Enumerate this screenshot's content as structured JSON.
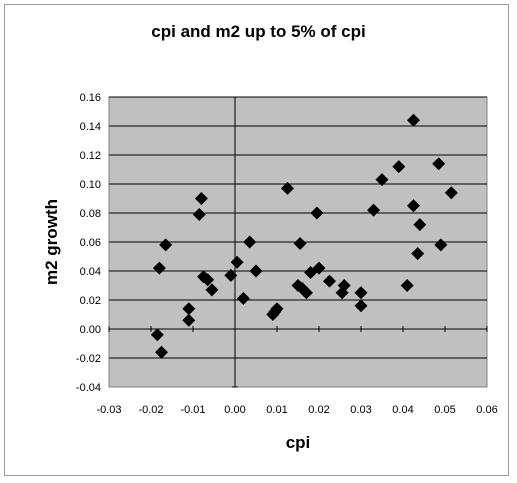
{
  "chart_data": {
    "type": "scatter",
    "title": "cpi and m2 up to 5% of cpi",
    "xlabel": "cpi",
    "ylabel": "m2 growth",
    "xlim": [
      -0.03,
      0.06
    ],
    "ylim": [
      -0.04,
      0.16
    ],
    "xticks": [
      -0.03,
      -0.02,
      -0.01,
      0.0,
      0.01,
      0.02,
      0.03,
      0.04,
      0.05,
      0.06
    ],
    "yticks": [
      -0.04,
      -0.02,
      0.0,
      0.02,
      0.04,
      0.06,
      0.08,
      0.1,
      0.12,
      0.14,
      0.16
    ],
    "xtick_labels": [
      "-0.03",
      "-0.02",
      "-0.01",
      "0.00",
      "0.01",
      "0.02",
      "0.03",
      "0.04",
      "0.05",
      "0.06"
    ],
    "ytick_labels": [
      "-0.04",
      "-0.02",
      "0.00",
      "0.02",
      "0.04",
      "0.06",
      "0.08",
      "0.10",
      "0.12",
      "0.14",
      "0.16"
    ],
    "grid": "horizontal",
    "legend": "none",
    "colors": {
      "plot_background": "#c0c0c0",
      "marker": "#000000",
      "gridline": "#000000"
    },
    "marker": "diamond",
    "points": [
      {
        "x": -0.0185,
        "y": -0.004
      },
      {
        "x": -0.0175,
        "y": -0.016
      },
      {
        "x": -0.018,
        "y": 0.042
      },
      {
        "x": -0.0165,
        "y": 0.058
      },
      {
        "x": -0.011,
        "y": 0.014
      },
      {
        "x": -0.011,
        "y": 0.006
      },
      {
        "x": -0.0085,
        "y": 0.079
      },
      {
        "x": -0.008,
        "y": 0.09
      },
      {
        "x": -0.0075,
        "y": 0.036
      },
      {
        "x": -0.0065,
        "y": 0.034
      },
      {
        "x": -0.0055,
        "y": 0.027
      },
      {
        "x": -0.001,
        "y": 0.037
      },
      {
        "x": 0.0005,
        "y": 0.046
      },
      {
        "x": 0.002,
        "y": 0.021
      },
      {
        "x": 0.0035,
        "y": 0.06
      },
      {
        "x": 0.005,
        "y": 0.04
      },
      {
        "x": 0.009,
        "y": 0.01
      },
      {
        "x": 0.0095,
        "y": 0.012
      },
      {
        "x": 0.01,
        "y": 0.014
      },
      {
        "x": 0.0125,
        "y": 0.097
      },
      {
        "x": 0.015,
        "y": 0.03
      },
      {
        "x": 0.0155,
        "y": 0.059
      },
      {
        "x": 0.016,
        "y": 0.028
      },
      {
        "x": 0.017,
        "y": 0.025
      },
      {
        "x": 0.018,
        "y": 0.039
      },
      {
        "x": 0.0195,
        "y": 0.08
      },
      {
        "x": 0.02,
        "y": 0.042
      },
      {
        "x": 0.0225,
        "y": 0.033
      },
      {
        "x": 0.0255,
        "y": 0.025
      },
      {
        "x": 0.026,
        "y": 0.03
      },
      {
        "x": 0.03,
        "y": 0.025
      },
      {
        "x": 0.03,
        "y": 0.016
      },
      {
        "x": 0.033,
        "y": 0.082
      },
      {
        "x": 0.035,
        "y": 0.103
      },
      {
        "x": 0.039,
        "y": 0.112
      },
      {
        "x": 0.041,
        "y": 0.03
      },
      {
        "x": 0.0425,
        "y": 0.085
      },
      {
        "x": 0.0425,
        "y": 0.144
      },
      {
        "x": 0.0435,
        "y": 0.052
      },
      {
        "x": 0.044,
        "y": 0.072
      },
      {
        "x": 0.0485,
        "y": 0.114
      },
      {
        "x": 0.049,
        "y": 0.058
      },
      {
        "x": 0.0515,
        "y": 0.094
      }
    ]
  }
}
